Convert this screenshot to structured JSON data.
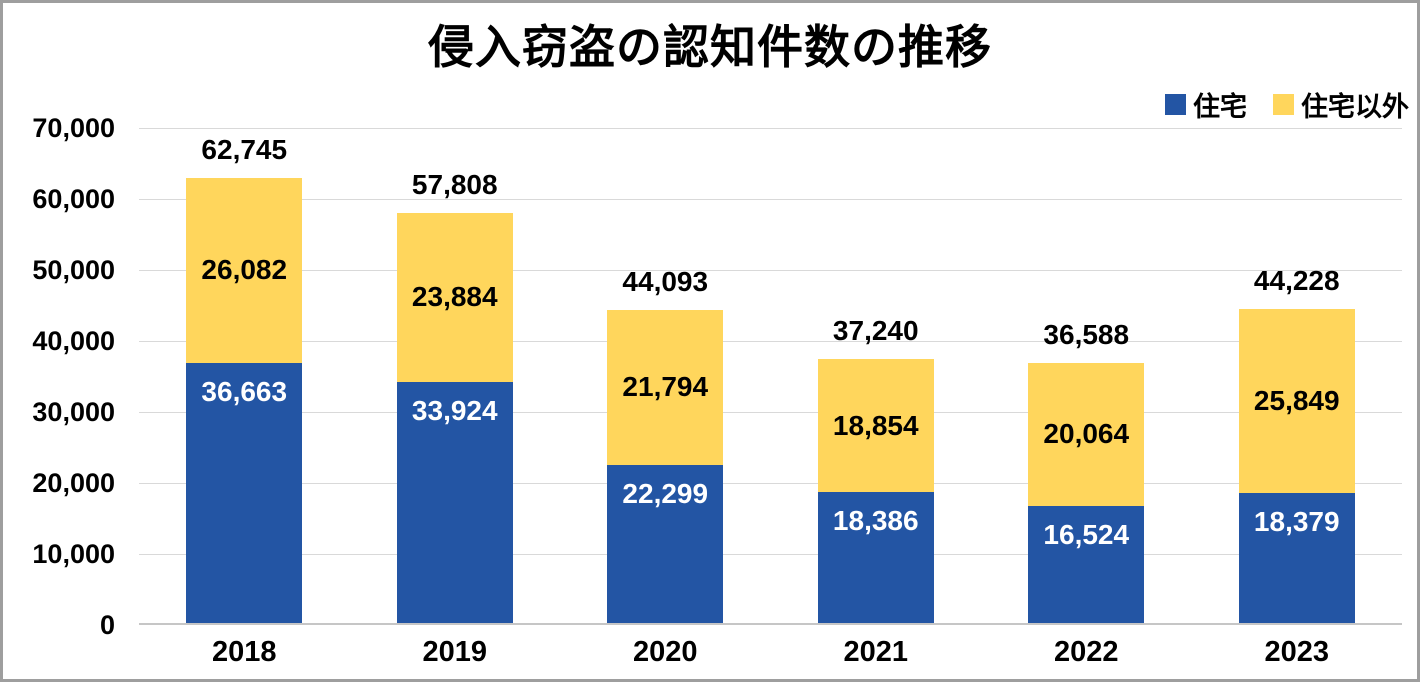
{
  "frame": {
    "border_color": "#9e9e9e",
    "background": "#ffffff"
  },
  "chart_data": {
    "type": "bar",
    "stacked": true,
    "title": "侵入窃盗の認知件数の推移",
    "categories": [
      "2018",
      "2019",
      "2020",
      "2021",
      "2022",
      "2023"
    ],
    "series": [
      {
        "name": "住宅",
        "color": "#2355a4",
        "label_color": "#ffffff",
        "label_position": "inside-end",
        "values": [
          36663,
          33924,
          22299,
          18386,
          16524,
          18379
        ]
      },
      {
        "name": "住宅以外",
        "color": "#ffd65c",
        "label_color": "#000000",
        "label_position": "center",
        "values": [
          26082,
          23884,
          21794,
          18854,
          20064,
          25849
        ]
      }
    ],
    "totals": [
      62745,
      57808,
      44093,
      37240,
      36588,
      44228
    ],
    "y_axis": {
      "min": 0,
      "max": 70000,
      "step": 10000,
      "tick_labels": [
        "0",
        "10,000",
        "20,000",
        "30,000",
        "40,000",
        "50,000",
        "60,000",
        "70,000"
      ]
    },
    "legend_position": "top-right",
    "grid": true,
    "gridline_color": "#d9d9d9",
    "axis_line_color": "#c6c6c6"
  }
}
